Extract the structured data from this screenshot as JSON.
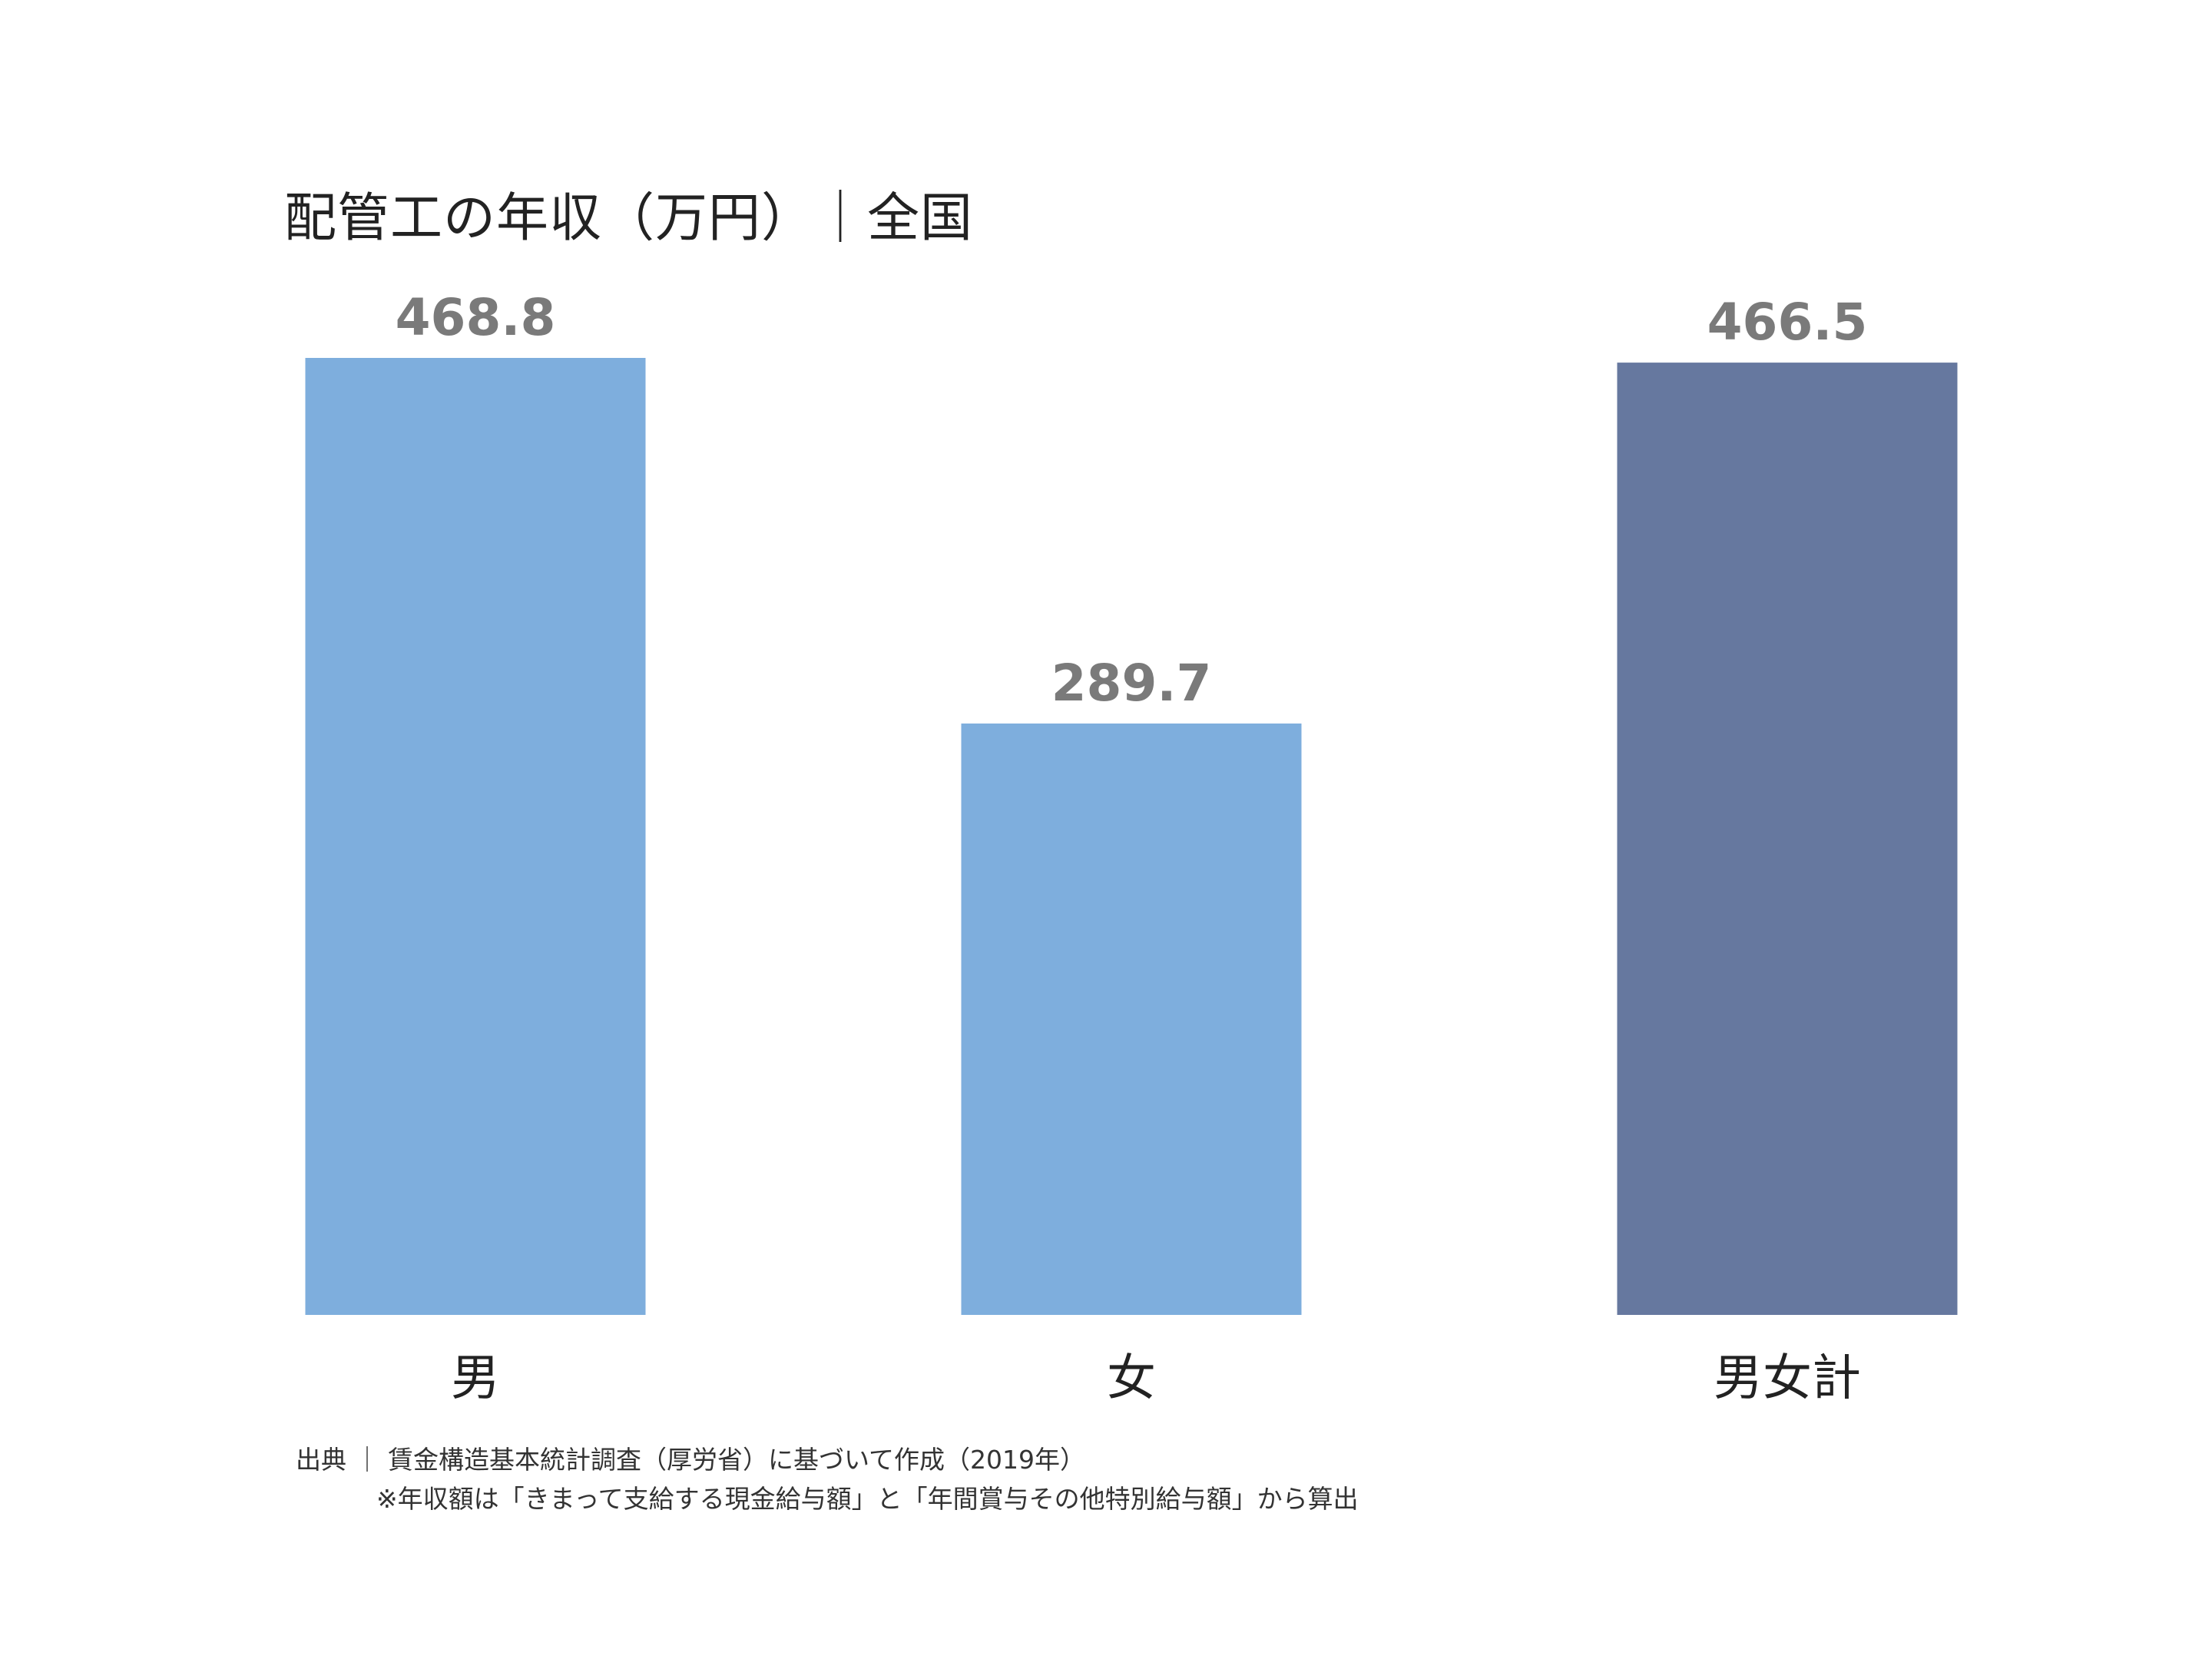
{
  "chart_data": {
    "type": "bar",
    "title": "配管工の年収（万円）｜全国",
    "categories": [
      "男",
      "女",
      "男女計"
    ],
    "values": [
      468.8,
      289.7,
      466.5
    ],
    "value_labels": [
      "468.8",
      "289.7",
      "466.5"
    ],
    "colors": [
      "#7eaedd",
      "#7eaedd",
      "#66789f"
    ],
    "xlabel": "",
    "ylabel": "",
    "ylim": [
      0,
      468.8
    ],
    "grid": false,
    "legend": "none"
  },
  "footer": {
    "source": "出典 ｜ 賃金構造基本統計調査（厚労省）に基づいて作成（2019年）",
    "note": "※年収額は「きまって支給する現金給与額」と「年間賞与その他特別給与額」から算出"
  }
}
